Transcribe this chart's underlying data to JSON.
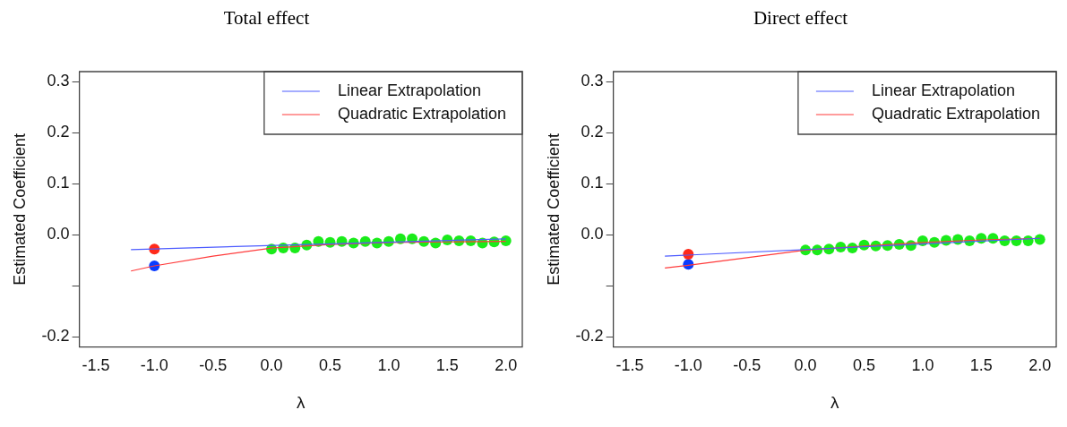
{
  "chart_data": [
    {
      "type": "scatter",
      "title": "Total effect",
      "xlabel": "λ",
      "ylabel": "Estimated Coefficient",
      "xlim": [
        -1.64,
        2.14
      ],
      "ylim": [
        -0.22,
        0.32
      ],
      "xticks": [
        {
          "value": -1.5,
          "label": "-1.5"
        },
        {
          "value": -1,
          "label": "-1.0"
        },
        {
          "value": -0.5,
          "label": "-0.5"
        },
        {
          "value": 0,
          "label": "0.0"
        },
        {
          "value": 0.5,
          "label": "0.5"
        },
        {
          "value": 1,
          "label": "1.0"
        },
        {
          "value": 1.5,
          "label": "1.5"
        },
        {
          "value": 2,
          "label": "2.0"
        }
      ],
      "yticks": [
        {
          "value": -0.2,
          "label": "-0.2"
        },
        {
          "value": -0.1,
          "label": null
        },
        {
          "value": 0,
          "label": "0.0"
        },
        {
          "value": 0.1,
          "label": "0.1"
        },
        {
          "value": 0.2,
          "label": "0.2"
        },
        {
          "value": 0.3,
          "label": "0.3"
        }
      ],
      "grid": false,
      "legend": "top right",
      "series": [
        {
          "type": "line",
          "marker": "none",
          "name": "Linear Extrapolation",
          "color": "#4d5cff",
          "x": [
            -1.2,
            2
          ],
          "values": [
            -0.029,
            -0.008
          ]
        },
        {
          "type": "line",
          "marker": "none",
          "name": "Quadratic Extrapolation",
          "color": "#ff3b3b",
          "x": [
            -1.2,
            -1,
            -0.5,
            0,
            0.5,
            1,
            1.5,
            2
          ],
          "values": [
            -0.071,
            -0.061,
            -0.042,
            -0.026,
            -0.019,
            -0.015,
            -0.014,
            -0.013
          ]
        },
        {
          "type": "scatter",
          "marker": "circle",
          "color": "#1aeb1a",
          "x": [
            0,
            0.1,
            0.2,
            0.3,
            0.4,
            0.5,
            0.6,
            0.7,
            0.8,
            0.9,
            1,
            1.1,
            1.2,
            1.3,
            1.4,
            1.5,
            1.6,
            1.7,
            1.8,
            1.9,
            2
          ],
          "values": [
            -0.028,
            -0.026,
            -0.026,
            -0.02,
            -0.013,
            -0.015,
            -0.013,
            -0.016,
            -0.013,
            -0.016,
            -0.013,
            -0.008,
            -0.008,
            -0.013,
            -0.016,
            -0.01,
            -0.012,
            -0.012,
            -0.016,
            -0.014,
            -0.012
          ]
        },
        {
          "type": "scatter",
          "marker": "circle",
          "color": "#ff2a1a",
          "x": [
            -1
          ],
          "values": [
            -0.028
          ]
        },
        {
          "type": "scatter",
          "marker": "circle",
          "color": "#0a3cff",
          "x": [
            -1
          ],
          "values": [
            -0.061
          ]
        }
      ]
    },
    {
      "type": "scatter",
      "title": "Direct effect",
      "xlabel": "λ",
      "ylabel": "Estimated Coefficient",
      "xlim": [
        -1.64,
        2.14
      ],
      "ylim": [
        -0.22,
        0.32
      ],
      "xticks": [
        {
          "value": -1.5,
          "label": "-1.5"
        },
        {
          "value": -1,
          "label": "-1.0"
        },
        {
          "value": -0.5,
          "label": "-0.5"
        },
        {
          "value": 0,
          "label": "0.0"
        },
        {
          "value": 0.5,
          "label": "0.5"
        },
        {
          "value": 1,
          "label": "1.0"
        },
        {
          "value": 1.5,
          "label": "1.5"
        },
        {
          "value": 2,
          "label": "2.0"
        }
      ],
      "yticks": [
        {
          "value": -0.2,
          "label": "-0.2"
        },
        {
          "value": -0.1,
          "label": null
        },
        {
          "value": 0,
          "label": "0.0"
        },
        {
          "value": 0.1,
          "label": "0.1"
        },
        {
          "value": 0.2,
          "label": "0.2"
        },
        {
          "value": 0.3,
          "label": "0.3"
        }
      ],
      "grid": false,
      "legend": "top right",
      "series": [
        {
          "type": "line",
          "marker": "none",
          "name": "Linear Extrapolation",
          "color": "#4d5cff",
          "x": [
            -1.2,
            2
          ],
          "values": [
            -0.042,
            -0.007
          ]
        },
        {
          "type": "line",
          "marker": "none",
          "name": "Quadratic Extrapolation",
          "color": "#ff3b3b",
          "x": [
            -1.2,
            -1,
            -0.5,
            0,
            0.5,
            1,
            1.5,
            2
          ],
          "values": [
            -0.065,
            -0.06,
            -0.045,
            -0.03,
            -0.022,
            -0.015,
            -0.01,
            -0.007
          ]
        },
        {
          "type": "scatter",
          "marker": "circle",
          "color": "#1aeb1a",
          "x": [
            0,
            0.1,
            0.2,
            0.3,
            0.4,
            0.5,
            0.6,
            0.7,
            0.8,
            0.9,
            1,
            1.1,
            1.2,
            1.3,
            1.4,
            1.5,
            1.6,
            1.7,
            1.8,
            1.9,
            2
          ],
          "values": [
            -0.03,
            -0.03,
            -0.028,
            -0.024,
            -0.026,
            -0.02,
            -0.022,
            -0.021,
            -0.019,
            -0.021,
            -0.012,
            -0.015,
            -0.011,
            -0.009,
            -0.012,
            -0.007,
            -0.007,
            -0.012,
            -0.012,
            -0.012,
            -0.009
          ]
        },
        {
          "type": "scatter",
          "marker": "circle",
          "color": "#ff2a1a",
          "x": [
            -1
          ],
          "values": [
            -0.038
          ]
        },
        {
          "type": "scatter",
          "marker": "circle",
          "color": "#0a3cff",
          "x": [
            -1
          ],
          "values": [
            -0.058
          ]
        }
      ]
    }
  ]
}
